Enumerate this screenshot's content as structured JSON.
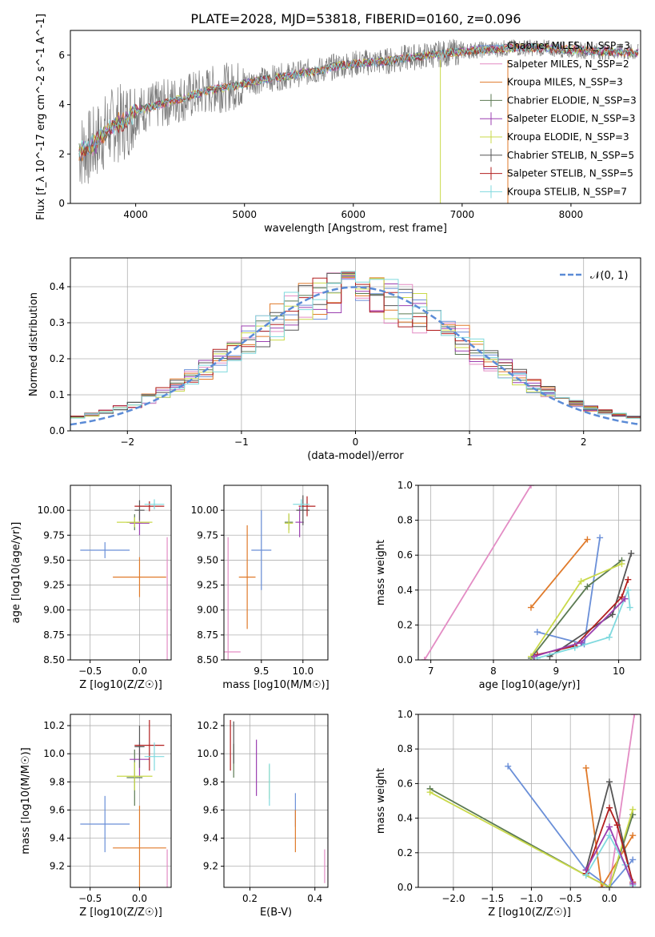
{
  "figure_title": "PLATE=2028, MJD=53818, FIBERID=0160, z=0.096",
  "colors": {
    "chabrier_miles": "#6a8fd8",
    "salpeter_miles": "#e38cc4",
    "kroupa_miles": "#e07a2a",
    "chabrier_elodie": "#5b7a52",
    "salpeter_elodie": "#9b3fb0",
    "kroupa_elodie": "#c9d94a",
    "chabrier_stelib": "#555555",
    "salpeter_stelib": "#b21f1f",
    "kroupa_stelib": "#7fd9de",
    "data_grey": "#7a7a7a",
    "normal_curve": "#5b8bd6"
  },
  "chart_data": [
    {
      "id": "spectrum",
      "type": "line",
      "xlabel": "wavelength [Angstrom, rest frame]",
      "ylabel": "Flux [f_λ 10^-17 erg cm^-2 s^-1 A^-1]",
      "xlim": [
        3400,
        8640
      ],
      "ylim": [
        0,
        7
      ],
      "xticks": [
        "4000",
        "5000",
        "6000",
        "7000",
        "8000"
      ],
      "yticks": [
        "0",
        "2",
        "4",
        "6"
      ],
      "legend_position": "top-right",
      "legend": [
        "Chabrier MILES, N_SSP=3",
        "Salpeter MILES, N_SSP=2",
        "Kroupa MILES, N_SSP=3",
        "Chabrier ELODIE, N_SSP=3",
        "Salpeter ELODIE, N_SSP=3",
        "Kroupa ELODIE, N_SSP=3",
        "Chabrier STELIB, N_SSP=5",
        "Salpeter STELIB, N_SSP=5",
        "Kroupa STELIB, N_SSP=7"
      ],
      "continuum": {
        "x": [
          3480,
          3600,
          3700,
          3800,
          3900,
          4000,
          4100,
          4300,
          4500,
          4700,
          4900,
          5100,
          5300,
          5500,
          5700,
          5900,
          6100,
          6300,
          6500,
          6700,
          6900,
          7100,
          7300,
          7500,
          7700,
          7900,
          8100,
          8300,
          8620
        ],
        "y": [
          2.1,
          2.3,
          2.8,
          3.2,
          3.3,
          3.75,
          3.85,
          4.1,
          4.35,
          4.6,
          4.75,
          4.95,
          5.1,
          5.25,
          5.4,
          5.6,
          5.7,
          5.75,
          5.9,
          6.0,
          6.1,
          6.2,
          6.25,
          6.3,
          6.3,
          6.25,
          6.2,
          6.15,
          6.1
        ]
      }
    },
    {
      "id": "residual_histogram",
      "type": "histogram",
      "xlabel": "(data-model)/error",
      "ylabel": "Normed distribution",
      "xlim": [
        -2.5,
        2.5
      ],
      "ylim": [
        0,
        0.48
      ],
      "xticks": [
        "−2",
        "−1",
        "0",
        "1",
        "2"
      ],
      "yticks": [
        "0.0",
        "0.1",
        "0.2",
        "0.3",
        "0.4"
      ],
      "grid": true,
      "legend_position": "top-right",
      "legend": [
        "𝒩(0, 1)"
      ],
      "bins": 40,
      "reference_curve": "standard normal"
    },
    {
      "id": "age_vs_Z",
      "type": "scatter",
      "xlabel": "Z [log10(Z/Z☉)]",
      "ylabel": "age [log10(age/yr)]",
      "xlim": [
        -0.7,
        0.32
      ],
      "ylim": [
        8.5,
        10.25
      ],
      "xticks": [
        "−0.5",
        "0.0"
      ],
      "yticks": [
        "8.50",
        "8.75",
        "9.00",
        "9.25",
        "9.50",
        "9.75",
        "10.00"
      ],
      "grid": true,
      "points": [
        {
          "series": "Chabrier MILES",
          "x": -0.35,
          "y": 9.6,
          "xerr": 0.25,
          "yerr": 0.08
        },
        {
          "series": "Salpeter MILES",
          "x": 0.28,
          "y": 8.58,
          "xerr": 0.0,
          "yerr": 1.15
        },
        {
          "series": "Kroupa MILES",
          "x": 0.0,
          "y": 9.33,
          "xerr": 0.27,
          "yerr": 0.2
        },
        {
          "series": "Chabrier ELODIE",
          "x": -0.05,
          "y": 9.88,
          "xerr": 0.08,
          "yerr": 0.08
        },
        {
          "series": "Salpeter ELODIE",
          "x": 0.0,
          "y": 9.87,
          "xerr": 0.1,
          "yerr": 0.12
        },
        {
          "series": "Kroupa ELODIE",
          "x": -0.05,
          "y": 9.88,
          "xerr": 0.18,
          "yerr": 0.05
        },
        {
          "series": "Chabrier STELIB",
          "x": 0.0,
          "y": 10.0,
          "xerr": 0.05,
          "yerr": 0.1
        },
        {
          "series": "Salpeter STELIB",
          "x": 0.1,
          "y": 10.04,
          "xerr": 0.15,
          "yerr": 0.05
        },
        {
          "series": "Kroupa STELIB",
          "x": 0.15,
          "y": 10.06,
          "xerr": 0.1,
          "yerr": 0.05
        }
      ]
    },
    {
      "id": "age_vs_mass",
      "type": "scatter",
      "xlabel": "mass [log10(M/M☉)]",
      "ylabel": "",
      "xlim": [
        9.05,
        10.3
      ],
      "ylim": [
        8.5,
        10.25
      ],
      "xticks": [
        "9.5",
        "10.0"
      ],
      "yticks": [
        "8.50",
        "8.75",
        "9.00",
        "9.25",
        "9.50",
        "9.75",
        "10.00"
      ],
      "grid": true,
      "points": [
        {
          "series": "Chabrier MILES",
          "x": 9.5,
          "y": 9.6,
          "xerr": 0.12,
          "yerr": 0.4
        },
        {
          "series": "Salpeter MILES",
          "x": 9.1,
          "y": 8.58,
          "xerr": 0.15,
          "yerr": 1.15
        },
        {
          "series": "Kroupa MILES",
          "x": 9.33,
          "y": 9.33,
          "xerr": 0.1,
          "yerr": 0.52
        },
        {
          "series": "Chabrier ELODIE",
          "x": 9.83,
          "y": 9.88,
          "xerr": 0.05,
          "yerr": 0.08
        },
        {
          "series": "Salpeter ELODIE",
          "x": 9.96,
          "y": 9.88,
          "xerr": 0.05,
          "yerr": 0.15
        },
        {
          "series": "Kroupa ELODIE",
          "x": 9.83,
          "y": 9.87,
          "xerr": 0.05,
          "yerr": 0.1
        },
        {
          "series": "Chabrier STELIB",
          "x": 10.0,
          "y": 10.0,
          "xerr": 0.08,
          "yerr": 0.15
        },
        {
          "series": "Salpeter STELIB",
          "x": 10.05,
          "y": 10.04,
          "xerr": 0.1,
          "yerr": 0.1
        },
        {
          "series": "Kroupa STELIB",
          "x": 9.98,
          "y": 10.06,
          "xerr": 0.1,
          "yerr": 0.05
        }
      ]
    },
    {
      "id": "weight_vs_age",
      "type": "line",
      "xlabel": "age [log10(age/yr)]",
      "ylabel": "mass weight",
      "xlim": [
        6.8,
        10.35
      ],
      "ylim": [
        0,
        1.0
      ],
      "xticks": [
        "7",
        "8",
        "9",
        "10"
      ],
      "yticks": [
        "0.0",
        "0.2",
        "0.4",
        "0.6",
        "0.8",
        "1.0"
      ],
      "grid": true,
      "series": [
        {
          "name": "Salpeter MILES",
          "x": [
            6.9,
            8.6
          ],
          "y": [
            0.0,
            1.0
          ]
        },
        {
          "name": "Kroupa MILES",
          "x": [
            8.6,
            9.5
          ],
          "y": [
            0.3,
            0.69
          ]
        },
        {
          "name": "Chabrier MILES",
          "x": [
            8.7,
            9.45,
            9.7
          ],
          "y": [
            0.16,
            0.09,
            0.7
          ]
        },
        {
          "name": "Chabrier ELODIE",
          "x": [
            8.6,
            9.5,
            10.05
          ],
          "y": [
            0.01,
            0.42,
            0.57
          ]
        },
        {
          "name": "Kroupa ELODIE",
          "x": [
            8.6,
            9.4,
            10.05
          ],
          "y": [
            0.02,
            0.45,
            0.55
          ]
        },
        {
          "name": "Chabrier STELIB",
          "x": [
            8.9,
            9.9,
            10.2
          ],
          "y": [
            0.02,
            0.26,
            0.61
          ]
        },
        {
          "name": "Salpeter STELIB",
          "x": [
            8.7,
            9.3,
            10.05,
            10.15
          ],
          "y": [
            0.03,
            0.08,
            0.36,
            0.46
          ]
        },
        {
          "name": "Kroupa STELIB",
          "x": [
            8.7,
            9.3,
            9.85,
            10.15,
            10.18
          ],
          "y": [
            0.01,
            0.07,
            0.13,
            0.4,
            0.3
          ]
        },
        {
          "name": "Salpeter ELODIE",
          "x": [
            8.65,
            9.4,
            10.1
          ],
          "y": [
            0.02,
            0.1,
            0.35
          ]
        }
      ]
    },
    {
      "id": "mass_vs_Z",
      "type": "scatter",
      "xlabel": "Z [log10(Z/Z☉)]",
      "ylabel": "mass [log10(M/M☉)]",
      "xlim": [
        -0.7,
        0.32
      ],
      "ylim": [
        9.05,
        10.28
      ],
      "xticks": [
        "−0.5",
        "0.0"
      ],
      "yticks": [
        "9.2",
        "9.4",
        "9.6",
        "9.8",
        "10.0",
        "10.2"
      ],
      "grid": true,
      "points": [
        {
          "series": "Chabrier MILES",
          "x": -0.35,
          "y": 9.5,
          "xerr": 0.25,
          "yerr": 0.2
        },
        {
          "series": "Salpeter MILES",
          "x": 0.28,
          "y": 9.1,
          "xerr": 0.0,
          "yerr": 0.22
        },
        {
          "series": "Kroupa MILES",
          "x": 0.0,
          "y": 9.33,
          "xerr": 0.27,
          "yerr": 0.3
        },
        {
          "series": "Chabrier ELODIE",
          "x": -0.05,
          "y": 9.83,
          "xerr": 0.08,
          "yerr": 0.2
        },
        {
          "series": "Salpeter ELODIE",
          "x": 0.0,
          "y": 9.96,
          "xerr": 0.1,
          "yerr": 0.12
        },
        {
          "series": "Kroupa ELODIE",
          "x": -0.05,
          "y": 9.84,
          "xerr": 0.18,
          "yerr": 0.1
        },
        {
          "series": "Chabrier STELIB",
          "x": 0.0,
          "y": 10.05,
          "xerr": 0.05,
          "yerr": 0.15
        },
        {
          "series": "Salpeter STELIB",
          "x": 0.1,
          "y": 10.06,
          "xerr": 0.15,
          "yerr": 0.18
        },
        {
          "series": "Kroupa STELIB",
          "x": 0.15,
          "y": 9.98,
          "xerr": 0.1,
          "yerr": 0.1
        }
      ]
    },
    {
      "id": "mass_vs_ebv",
      "type": "scatter",
      "xlabel": "E(B-V)",
      "ylabel": "",
      "xlim": [
        0.12,
        0.44
      ],
      "ylim": [
        9.05,
        10.28
      ],
      "xticks": [
        "0.2",
        "0.4"
      ],
      "yticks": [
        "9.2",
        "9.4",
        "9.6",
        "9.8",
        "10.0",
        "10.2"
      ],
      "grid": true,
      "points": [
        {
          "series": "Chabrier MILES",
          "x": 0.34,
          "y": 9.6,
          "yerr": 0.12
        },
        {
          "series": "Salpeter MILES",
          "x": 0.43,
          "y": 9.2,
          "yerr": 0.12
        },
        {
          "series": "Kroupa MILES",
          "x": 0.34,
          "y": 9.45,
          "yerr": 0.15
        },
        {
          "series": "Chabrier ELODIE",
          "x": 0.15,
          "y": 9.95,
          "yerr": 0.12
        },
        {
          "series": "Salpeter ELODIE",
          "x": 0.22,
          "y": 9.9,
          "yerr": 0.2
        },
        {
          "series": "Kroupa ELODIE",
          "x": 0.26,
          "y": 9.8,
          "yerr": 0.12
        },
        {
          "series": "Chabrier STELIB",
          "x": 0.15,
          "y": 10.08,
          "yerr": 0.15
        },
        {
          "series": "Salpeter STELIB",
          "x": 0.14,
          "y": 10.06,
          "yerr": 0.18
        },
        {
          "series": "Kroupa STELIB",
          "x": 0.26,
          "y": 9.78,
          "yerr": 0.15
        }
      ]
    },
    {
      "id": "weight_vs_Z",
      "type": "line",
      "xlabel": "Z [log10(Z/Z☉)]",
      "ylabel": "mass weight",
      "xlim": [
        -2.45,
        0.4
      ],
      "ylim": [
        0,
        1.0
      ],
      "xticks": [
        "−2.0",
        "−1.5",
        "−1.0",
        "−0.5",
        "0.0"
      ],
      "yticks": [
        "0.0",
        "0.2",
        "0.4",
        "0.6",
        "0.8",
        "1.0"
      ],
      "grid": true,
      "series": [
        {
          "name": "Chabrier MILES",
          "x": [
            -1.3,
            -0.3,
            0.0,
            0.3
          ],
          "y": [
            0.7,
            0.1,
            0.0,
            0.16
          ]
        },
        {
          "name": "Salpeter MILES",
          "x": [
            0.0,
            0.32
          ],
          "y": [
            0.0,
            1.0
          ]
        },
        {
          "name": "Kroupa MILES",
          "x": [
            -0.3,
            -0.1,
            0.3
          ],
          "y": [
            0.69,
            0.0,
            0.3
          ]
        },
        {
          "name": "Chabrier ELODIE",
          "x": [
            -2.3,
            -0.3,
            0.0,
            0.3
          ],
          "y": [
            0.57,
            0.07,
            0.0,
            0.42
          ]
        },
        {
          "name": "Kroupa ELODIE",
          "x": [
            -2.3,
            -0.3,
            0.0,
            0.3
          ],
          "y": [
            0.55,
            0.07,
            0.0,
            0.45
          ]
        },
        {
          "name": "Chabrier STELIB",
          "x": [
            -0.3,
            0.0,
            0.3
          ],
          "y": [
            0.1,
            0.61,
            0.02
          ]
        },
        {
          "name": "Salpeter STELIB",
          "x": [
            -0.3,
            0.0,
            0.1,
            0.3
          ],
          "y": [
            0.08,
            0.46,
            0.36,
            0.03
          ]
        },
        {
          "name": "Kroupa STELIB",
          "x": [
            -0.3,
            0.0,
            0.2,
            0.3
          ],
          "y": [
            0.07,
            0.3,
            0.13,
            0.01
          ]
        },
        {
          "name": "Salpeter ELODIE",
          "x": [
            -0.3,
            0.0,
            0.3
          ],
          "y": [
            0.1,
            0.35,
            0.02
          ]
        }
      ]
    }
  ]
}
